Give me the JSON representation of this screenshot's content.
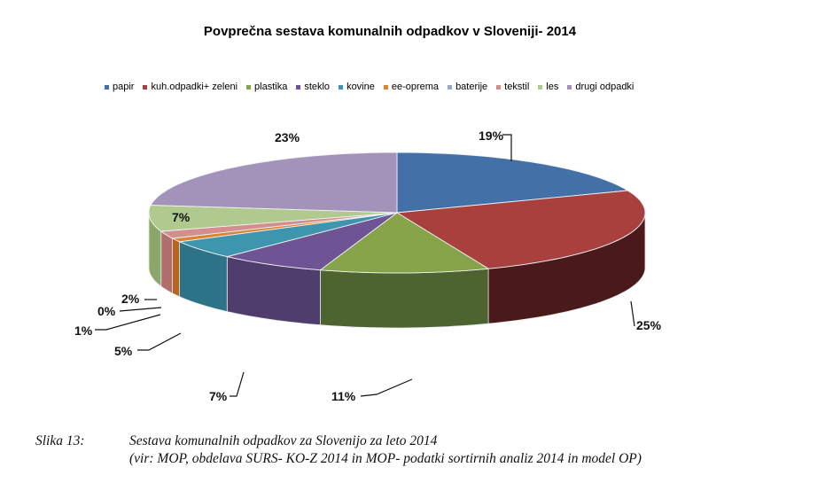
{
  "chart_data": {
    "type": "pie",
    "style": "3d-exploded-none",
    "title": "Povprečna sestava komunalnih  odpadkov v Sloveniji- 2014",
    "legend_position": "top",
    "categories": [
      "papir",
      "kuh.odpadki+ zeleni",
      "plastika",
      "steklo",
      "kovine",
      "ee-oprema",
      "baterije",
      "tekstil",
      "les",
      "drugi odpadki"
    ],
    "values": [
      19,
      25,
      11,
      7,
      5,
      1,
      0,
      2,
      7,
      23
    ],
    "labels": [
      "19%",
      "25%",
      "11%",
      "7%",
      "5%",
      "1%",
      "0%",
      "2%",
      "7%",
      "23%"
    ],
    "colors": [
      "#4470A8",
      "#A8403E",
      "#86A34A",
      "#6E5495",
      "#3E96AE",
      "#DB8430",
      "#93A9CF",
      "#D28F8E",
      "#AFC98E",
      "#A393BA"
    ],
    "side_colors": [
      "#2B4A73",
      "#4A1A1A",
      "#4D6330",
      "#4F3D6E",
      "#2E7488",
      "#B5661F",
      "#6F86AE",
      "#B06E6D",
      "#8AA66A",
      "#7C6E93"
    ],
    "units": "%"
  },
  "legend": {
    "items": [
      {
        "label": "papir",
        "color": "#4470A8"
      },
      {
        "label": "kuh.odpadki+ zeleni",
        "color": "#A8403E"
      },
      {
        "label": "plastika",
        "color": "#86A34A"
      },
      {
        "label": "steklo",
        "color": "#6E5495"
      },
      {
        "label": "kovine",
        "color": "#3E96AE"
      },
      {
        "label": "ee-oprema",
        "color": "#DB8430"
      },
      {
        "label": "baterije",
        "color": "#93A9CF"
      },
      {
        "label": "tekstil",
        "color": "#D28F8E"
      },
      {
        "label": "les",
        "color": "#AFC98E"
      },
      {
        "label": "drugi odpadki",
        "color": "#A393BA"
      }
    ]
  },
  "caption": {
    "number": "Slika 13:",
    "line1": "Sestava komunalnih odpadkov za Slovenijo za leto 2014",
    "line2": "(vir: MOP, obdelava SURS- KO-Z 2014 in MOP- podatki sortirnih analiz 2014 in model OP)"
  }
}
